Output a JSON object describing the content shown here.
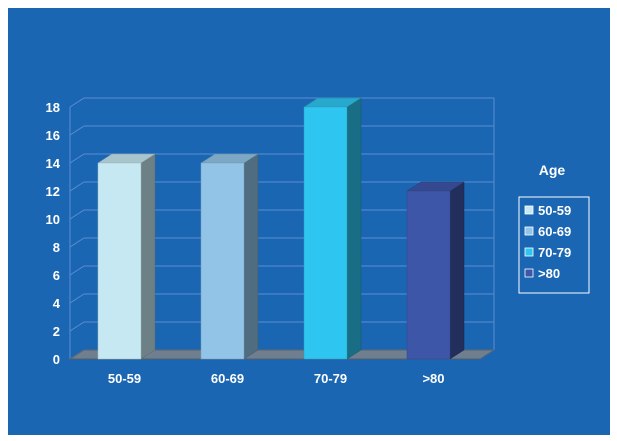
{
  "colors": {
    "background": "#1a66b3",
    "frame": "#ffffff",
    "floor": "#6f7f8f",
    "gridline": "#5a8ed0"
  },
  "chart_data": {
    "type": "bar",
    "style": "3d-column",
    "categories": [
      "50-59",
      "60-69",
      "70-79",
      ">80"
    ],
    "values": [
      14,
      14,
      18,
      12
    ],
    "bar_colors": [
      "#c6e8f2",
      "#92c4e8",
      "#2ec6f0",
      "#3d56a8"
    ],
    "ylim": [
      0,
      18
    ],
    "yticks": [
      0,
      2,
      4,
      6,
      8,
      10,
      12,
      14,
      16,
      18
    ],
    "title": "",
    "xlabel": "",
    "ylabel": "",
    "grid": true,
    "legend": {
      "title": "Age",
      "position": "right",
      "entries": [
        "50-59",
        "60-69",
        "70-79",
        ">80"
      ]
    }
  }
}
